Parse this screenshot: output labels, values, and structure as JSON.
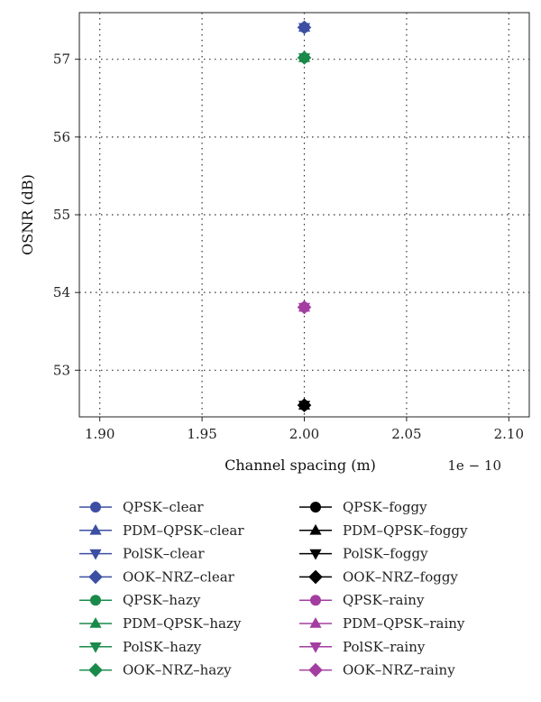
{
  "chart_data": {
    "type": "scatter",
    "title": "",
    "xlabel": "Channel spacing (m)",
    "ylabel": "OSNR (dB)",
    "x_offset_label": "1e − 10",
    "xlim": [
      1.89,
      2.11
    ],
    "ylim": [
      52.4,
      57.6
    ],
    "xticks": [
      1.9,
      1.95,
      2.0,
      2.05,
      2.1
    ],
    "xtick_labels": [
      "1.90",
      "1.95",
      "2.00",
      "2.05",
      "2.10"
    ],
    "yticks": [
      53,
      54,
      55,
      56,
      57
    ],
    "ytick_labels": [
      "53",
      "54",
      "55",
      "56",
      "57"
    ],
    "grid": true,
    "legend_position": "below plot, two columns",
    "series": [
      {
        "name": "QPSK–clear",
        "marker": "circle",
        "color": "#3c4fa3",
        "x": [
          2.0
        ],
        "y": [
          57.41
        ]
      },
      {
        "name": "PDM–QPSK–clear",
        "marker": "triangle-up",
        "color": "#3c4fa3",
        "x": [
          2.0
        ],
        "y": [
          57.41
        ]
      },
      {
        "name": "PolSK–clear",
        "marker": "triangle-down",
        "color": "#3c4fa3",
        "x": [
          2.0
        ],
        "y": [
          57.41
        ]
      },
      {
        "name": "OOK–NRZ–clear",
        "marker": "diamond",
        "color": "#3c4fa3",
        "x": [
          2.0
        ],
        "y": [
          57.41
        ]
      },
      {
        "name": "QPSK–hazy",
        "marker": "circle",
        "color": "#1a8a4a",
        "x": [
          2.0
        ],
        "y": [
          57.02
        ]
      },
      {
        "name": "PDM–QPSK–hazy",
        "marker": "triangle-up",
        "color": "#1a8a4a",
        "x": [
          2.0
        ],
        "y": [
          57.02
        ]
      },
      {
        "name": "PolSK–hazy",
        "marker": "triangle-down",
        "color": "#1a8a4a",
        "x": [
          2.0
        ],
        "y": [
          57.02
        ]
      },
      {
        "name": "OOK–NRZ–hazy",
        "marker": "diamond",
        "color": "#1a8a4a",
        "x": [
          2.0
        ],
        "y": [
          57.02
        ]
      },
      {
        "name": "QPSK–foggy",
        "marker": "circle",
        "color": "#000000",
        "x": [
          2.0
        ],
        "y": [
          52.55
        ]
      },
      {
        "name": "PDM–QPSK–foggy",
        "marker": "triangle-up",
        "color": "#000000",
        "x": [
          2.0
        ],
        "y": [
          52.55
        ]
      },
      {
        "name": "PolSK–foggy",
        "marker": "triangle-down",
        "color": "#000000",
        "x": [
          2.0
        ],
        "y": [
          52.55
        ]
      },
      {
        "name": "OOK–NRZ–foggy",
        "marker": "diamond",
        "color": "#000000",
        "x": [
          2.0
        ],
        "y": [
          52.55
        ]
      },
      {
        "name": "QPSK–rainy",
        "marker": "circle",
        "color": "#a33ea0",
        "x": [
          2.0
        ],
        "y": [
          53.81
        ]
      },
      {
        "name": "PDM–QPSK–rainy",
        "marker": "triangle-up",
        "color": "#a33ea0",
        "x": [
          2.0
        ],
        "y": [
          53.81
        ]
      },
      {
        "name": "PolSK–rainy",
        "marker": "triangle-down",
        "color": "#a33ea0",
        "x": [
          2.0
        ],
        "y": [
          53.81
        ]
      },
      {
        "name": "OOK–NRZ–rainy",
        "marker": "diamond",
        "color": "#a33ea0",
        "x": [
          2.0
        ],
        "y": [
          53.81
        ]
      }
    ]
  }
}
